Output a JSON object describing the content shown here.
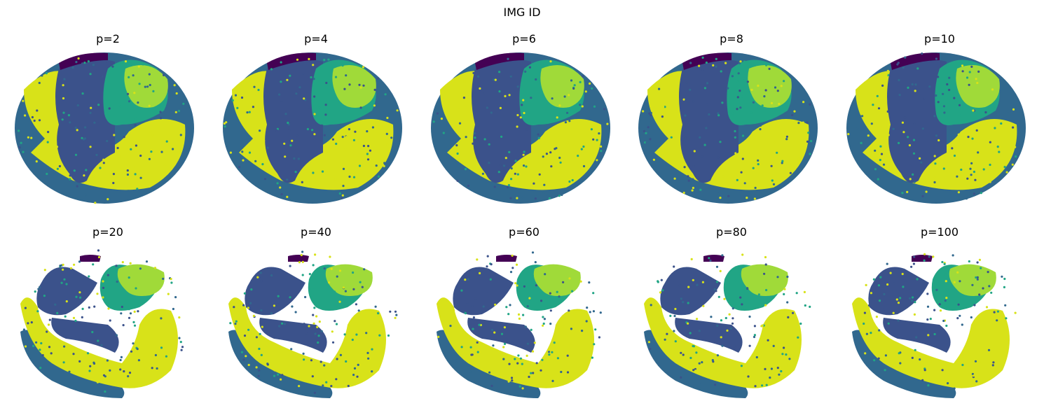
{
  "figure": {
    "suptitle": "IMG ID"
  },
  "colors": {
    "dark_purple": "#440154",
    "indigo": "#3b528b",
    "steel_blue": "#31688e",
    "teal_green": "#21a585",
    "light_green": "#a0da39",
    "yellow": "#d8e219"
  },
  "chart_data": [
    {
      "type": "scatter",
      "title": "p=2",
      "perplexity": 2,
      "axes_visible": false,
      "grid": false
    },
    {
      "type": "scatter",
      "title": "p=4",
      "perplexity": 4,
      "axes_visible": false,
      "grid": false
    },
    {
      "type": "scatter",
      "title": "p=6",
      "perplexity": 6,
      "axes_visible": false,
      "grid": false
    },
    {
      "type": "scatter",
      "title": "p=8",
      "perplexity": 8,
      "axes_visible": false,
      "grid": false
    },
    {
      "type": "scatter",
      "title": "p=10",
      "perplexity": 10,
      "axes_visible": false,
      "grid": false
    },
    {
      "type": "scatter",
      "title": "p=20",
      "perplexity": 20,
      "axes_visible": false,
      "grid": false
    },
    {
      "type": "scatter",
      "title": "p=40",
      "perplexity": 40,
      "axes_visible": false,
      "grid": false
    },
    {
      "type": "scatter",
      "title": "p=60",
      "perplexity": 60,
      "axes_visible": false,
      "grid": false
    },
    {
      "type": "scatter",
      "title": "p=80",
      "perplexity": 80,
      "axes_visible": false,
      "grid": false
    },
    {
      "type": "scatter",
      "title": "p=100",
      "perplexity": 100,
      "axes_visible": false,
      "grid": false
    }
  ]
}
